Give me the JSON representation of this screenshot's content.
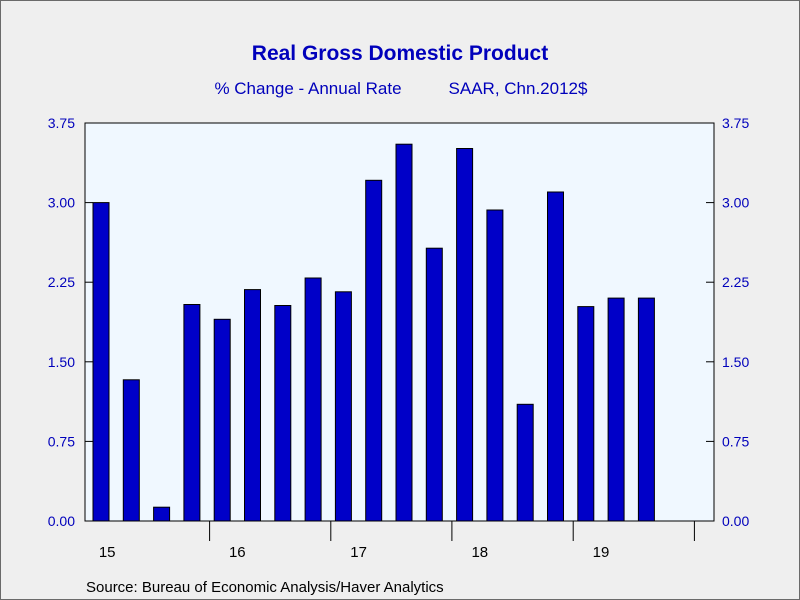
{
  "chart_data": {
    "type": "bar",
    "title": "Real Gross Domestic Product",
    "subtitle_left": "% Change - Annual Rate",
    "subtitle_right": "SAAR, Chn.2012$",
    "source": "Source:  Bureau of Economic Analysis/Haver Analytics",
    "ylim": [
      0,
      3.75
    ],
    "yticks": [
      "0.00",
      "0.75",
      "1.50",
      "2.25",
      "3.00",
      "3.75"
    ],
    "ytick_values": [
      0,
      0.75,
      1.5,
      2.25,
      3.0,
      3.75
    ],
    "dual_y_axis": true,
    "year_labels": [
      "15",
      "16",
      "17",
      "18",
      "19"
    ],
    "categories": [
      "15Q1",
      "15Q2",
      "15Q3",
      "15Q4",
      "16Q1",
      "16Q2",
      "16Q3",
      "16Q4",
      "17Q1",
      "17Q2",
      "17Q3",
      "17Q4",
      "18Q1",
      "18Q2",
      "18Q3",
      "18Q4",
      "19Q1",
      "19Q2",
      "19Q3"
    ],
    "values": [
      3.0,
      1.33,
      0.13,
      2.04,
      1.9,
      2.18,
      2.03,
      2.29,
      2.16,
      3.21,
      3.55,
      2.57,
      3.51,
      2.93,
      1.1,
      3.1,
      2.02,
      2.1,
      2.1
    ],
    "colors": {
      "bar": "#0000c8",
      "bar_stroke": "#000000",
      "plot_bg": "#f0f8ff",
      "text_blue": "#0000bb"
    },
    "grid": false,
    "legend": "none"
  }
}
